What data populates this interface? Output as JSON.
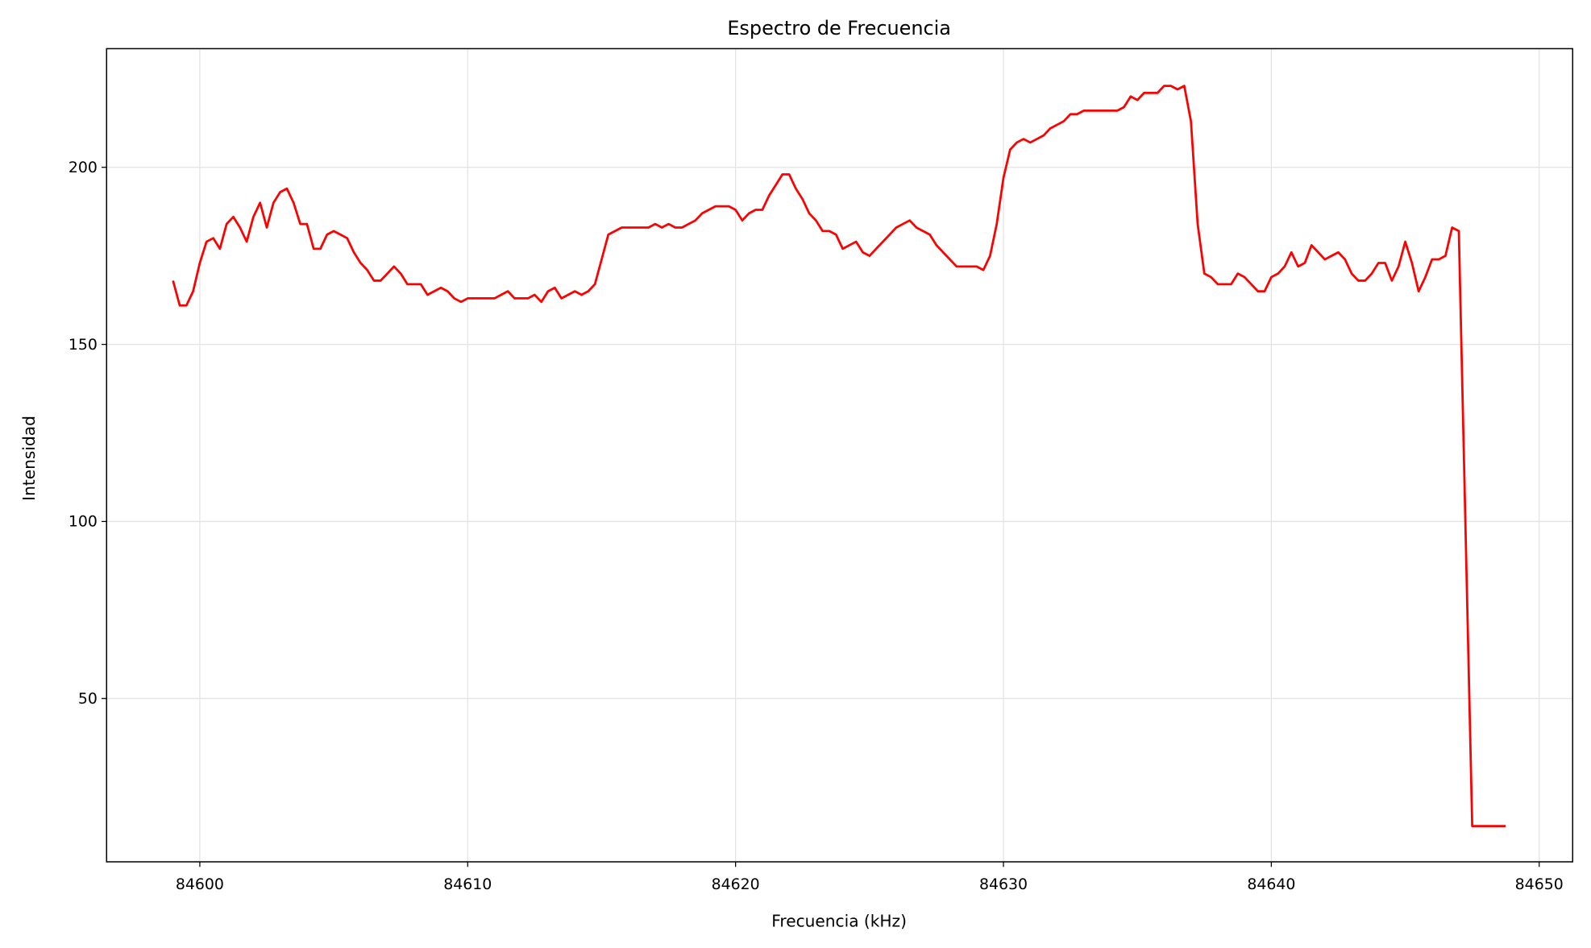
{
  "chart_data": {
    "type": "line",
    "title": "Espectro de Frecuencia",
    "xlabel": "Frecuencia (kHz)",
    "ylabel": "Intensidad",
    "x": [
      84599.0,
      84599.25,
      84599.5,
      84599.75,
      84600.0,
      84600.25,
      84600.5,
      84600.75,
      84601.0,
      84601.25,
      84601.5,
      84601.75,
      84602.0,
      84602.25,
      84602.5,
      84602.75,
      84603.0,
      84603.25,
      84603.5,
      84603.75,
      84604.0,
      84604.25,
      84604.5,
      84604.75,
      84605.0,
      84605.25,
      84605.5,
      84605.75,
      84606.0,
      84606.25,
      84606.5,
      84606.75,
      84607.0,
      84607.25,
      84607.5,
      84607.75,
      84608.0,
      84608.25,
      84608.5,
      84608.75,
      84609.0,
      84609.25,
      84609.5,
      84609.75,
      84610.0,
      84610.25,
      84610.5,
      84610.75,
      84611.0,
      84611.25,
      84611.5,
      84611.75,
      84612.0,
      84612.25,
      84612.5,
      84612.75,
      84613.0,
      84613.25,
      84613.5,
      84613.75,
      84614.0,
      84614.25,
      84614.5,
      84614.75,
      84615.0,
      84615.25,
      84615.5,
      84615.75,
      84616.0,
      84616.25,
      84616.5,
      84616.75,
      84617.0,
      84617.25,
      84617.5,
      84617.75,
      84618.0,
      84618.25,
      84618.5,
      84618.75,
      84619.0,
      84619.25,
      84619.5,
      84619.75,
      84620.0,
      84620.25,
      84620.5,
      84620.75,
      84621.0,
      84621.25,
      84621.5,
      84621.75,
      84622.0,
      84622.25,
      84622.5,
      84622.75,
      84623.0,
      84623.25,
      84623.5,
      84623.75,
      84624.0,
      84624.25,
      84624.5,
      84624.75,
      84625.0,
      84625.25,
      84625.5,
      84625.75,
      84626.0,
      84626.25,
      84626.5,
      84626.75,
      84627.0,
      84627.25,
      84627.5,
      84627.75,
      84628.0,
      84628.25,
      84628.5,
      84628.75,
      84629.0,
      84629.25,
      84629.5,
      84629.75,
      84630.0,
      84630.25,
      84630.5,
      84630.75,
      84631.0,
      84631.25,
      84631.5,
      84631.75,
      84632.0,
      84632.25,
      84632.5,
      84632.75,
      84633.0,
      84633.25,
      84633.5,
      84633.75,
      84634.0,
      84634.25,
      84634.5,
      84634.75,
      84635.0,
      84635.25,
      84635.5,
      84635.75,
      84636.0,
      84636.25,
      84636.5,
      84636.75,
      84637.0,
      84637.25,
      84637.5,
      84637.75,
      84638.0,
      84638.25,
      84638.5,
      84638.75,
      84639.0,
      84639.25,
      84639.5,
      84639.75,
      84640.0,
      84640.25,
      84640.5,
      84640.75,
      84641.0,
      84641.25,
      84641.5,
      84641.75,
      84642.0,
      84642.25,
      84642.5,
      84642.75,
      84643.0,
      84643.25,
      84643.5,
      84643.75,
      84644.0,
      84644.25,
      84644.5,
      84644.75,
      84645.0,
      84645.25,
      84645.5,
      84645.75,
      84646.0,
      84646.25,
      84646.5,
      84646.75,
      84647.0,
      84647.25,
      84647.5,
      84647.75,
      84648.0,
      84648.25,
      84648.5,
      84648.75
    ],
    "series": [
      {
        "color": "#ff0000",
        "values": [
          168,
          161,
          161,
          165,
          173,
          179,
          180,
          177,
          184,
          186,
          183,
          179,
          186,
          190,
          183,
          190,
          193,
          194,
          190,
          184,
          184,
          177,
          177,
          181,
          182,
          181,
          180,
          176,
          173,
          171,
          168,
          168,
          170,
          172,
          170,
          167,
          167,
          167,
          164,
          165,
          166,
          165,
          163,
          162,
          163,
          163,
          163,
          163,
          163,
          164,
          165,
          163,
          163,
          163,
          164,
          162,
          165,
          166,
          163,
          164,
          165,
          164,
          165,
          167,
          174,
          181,
          182,
          183,
          183,
          183,
          183,
          183,
          184,
          183,
          184,
          183,
          183,
          184,
          185,
          187,
          188,
          189,
          189,
          189,
          188,
          185,
          187,
          188,
          188,
          192,
          195,
          198,
          198,
          194,
          191,
          187,
          185,
          182,
          182,
          181,
          177,
          178,
          179,
          176,
          175,
          177,
          179,
          181,
          183,
          184,
          185,
          183,
          182,
          181,
          178,
          176,
          174,
          172,
          172,
          172,
          172,
          171,
          175,
          184,
          197,
          205,
          207,
          208,
          207,
          208,
          209,
          211,
          212,
          213,
          215,
          215,
          216,
          216,
          216,
          216,
          216,
          216,
          217,
          220,
          219,
          221,
          221,
          221,
          223,
          223,
          222,
          223,
          213,
          184,
          170,
          169,
          167,
          167,
          167,
          170,
          169,
          167,
          165,
          165,
          169,
          170,
          172,
          176,
          172,
          173,
          178,
          176,
          174,
          175,
          176,
          174,
          170,
          168,
          168,
          170,
          173,
          173,
          168,
          172,
          179,
          173,
          165,
          169,
          174,
          174,
          175,
          183,
          182,
          98,
          14,
          14,
          14,
          14,
          14,
          14
        ]
      }
    ],
    "xlim": [
      84596.52,
      84651.25
    ],
    "ylim": [
      3.9,
      233.5
    ],
    "xticks": [
      84600,
      84610,
      84620,
      84630,
      84640,
      84650
    ],
    "yticks": [
      50,
      100,
      150,
      200
    ],
    "grid": true
  }
}
